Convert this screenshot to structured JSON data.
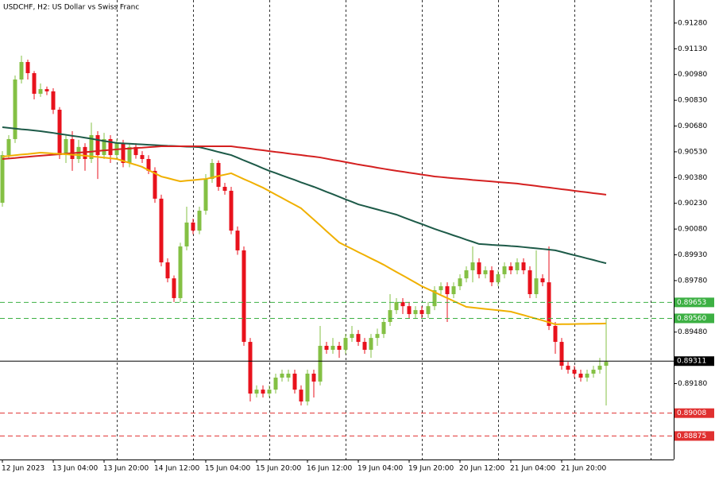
{
  "chart_data": {
    "type": "candlestick",
    "title": "USDCHF, H2:  US Dollar vs Swiss Franc",
    "categories": [
      "12 Jun 2023",
      null,
      null,
      null,
      null,
      null,
      null,
      null,
      "13 Jun 04:00",
      null,
      null,
      null,
      null,
      null,
      null,
      null,
      "13 Jun 20:00",
      null,
      null,
      null,
      null,
      null,
      null,
      null,
      "14 Jun 12:00",
      null,
      null,
      null,
      null,
      null,
      null,
      null,
      "15 Jun 04:00",
      null,
      null,
      null,
      null,
      null,
      null,
      null,
      "15 Jun 20:00",
      null,
      null,
      null,
      null,
      null,
      null,
      null,
      "16 Jun 12:00",
      null,
      null,
      null,
      null,
      null,
      null,
      null,
      "19 Jun 04:00",
      null,
      null,
      null,
      null,
      null,
      null,
      null,
      "19 Jun 20:00",
      null,
      null,
      null,
      null,
      null,
      null,
      null,
      "20 Jun 12:00",
      null,
      null,
      null,
      null,
      null,
      null,
      null,
      "21 Jun 04:00",
      null,
      null,
      null,
      null,
      null,
      null,
      null,
      "21 Jun 20:00",
      null,
      null,
      null,
      null,
      null,
      null,
      null
    ],
    "candles": [
      [
        0.90233,
        0.90534,
        0.9021,
        0.90511
      ],
      [
        0.90511,
        0.90627,
        0.90488,
        0.90604
      ],
      [
        0.90604,
        0.90974,
        0.90581,
        0.90951
      ],
      [
        0.90951,
        0.9109,
        0.90928,
        0.91053
      ],
      [
        0.91053,
        0.91067,
        0.90951,
        0.90988
      ],
      [
        0.90988,
        0.91,
        0.90835,
        0.90868
      ],
      [
        0.90868,
        0.90928,
        0.9085,
        0.90895
      ],
      [
        0.90895,
        0.9091,
        0.9086,
        0.90882
      ],
      [
        0.90882,
        0.909,
        0.9075,
        0.90775
      ],
      [
        0.90775,
        0.9079,
        0.90488,
        0.90511
      ],
      [
        0.90511,
        0.90627,
        0.90465,
        0.90604
      ],
      [
        0.90604,
        0.9065,
        0.90419,
        0.90488
      ],
      [
        0.90488,
        0.906,
        0.90465,
        0.90558
      ],
      [
        0.90558,
        0.9058,
        0.9042,
        0.90488
      ],
      [
        0.90488,
        0.907,
        0.90465,
        0.90627
      ],
      [
        0.90627,
        0.9065,
        0.90372,
        0.90511
      ],
      [
        0.90511,
        0.9064,
        0.90488,
        0.90604
      ],
      [
        0.90604,
        0.90627,
        0.90465,
        0.90511
      ],
      [
        0.90511,
        0.90604,
        0.90488,
        0.90581
      ],
      [
        0.90581,
        0.906,
        0.9044,
        0.90465
      ],
      [
        0.90465,
        0.9058,
        0.9044,
        0.90558
      ],
      [
        0.90558,
        0.9058,
        0.9049,
        0.90511
      ],
      [
        0.90511,
        0.90534,
        0.90465,
        0.90488
      ],
      [
        0.90488,
        0.9051,
        0.904,
        0.90419
      ],
      [
        0.90419,
        0.9044,
        0.90233,
        0.90257
      ],
      [
        0.90257,
        0.9028,
        0.89863,
        0.89886
      ],
      [
        0.89886,
        0.8991,
        0.8977,
        0.89793
      ],
      [
        0.89793,
        0.8981,
        0.89655,
        0.89678
      ],
      [
        0.89678,
        0.9,
        0.89655,
        0.89979
      ],
      [
        0.89979,
        0.9021,
        0.89956,
        0.90118
      ],
      [
        0.90118,
        0.9014,
        0.9005,
        0.90071
      ],
      [
        0.90071,
        0.9021,
        0.9005,
        0.90187
      ],
      [
        0.90187,
        0.904,
        0.90164,
        0.90372
      ],
      [
        0.90372,
        0.90488,
        0.90349,
        0.90465
      ],
      [
        0.90465,
        0.9048,
        0.90303,
        0.90326
      ],
      [
        0.90326,
        0.90349,
        0.9028,
        0.90303
      ],
      [
        0.90303,
        0.90326,
        0.9005,
        0.90071
      ],
      [
        0.90071,
        0.90095,
        0.8993,
        0.89956
      ],
      [
        0.89956,
        0.89979,
        0.894,
        0.89423
      ],
      [
        0.89423,
        0.89446,
        0.89076,
        0.89122
      ],
      [
        0.89122,
        0.8917,
        0.89099,
        0.89145
      ],
      [
        0.89145,
        0.8917,
        0.89099,
        0.89122
      ],
      [
        0.89122,
        0.8917,
        0.89099,
        0.89145
      ],
      [
        0.89145,
        0.89238,
        0.89122,
        0.89215
      ],
      [
        0.89215,
        0.89261,
        0.89192,
        0.89238
      ],
      [
        0.89215,
        0.89261,
        0.89192,
        0.89238
      ],
      [
        0.89238,
        0.89261,
        0.89122,
        0.89145
      ],
      [
        0.89145,
        0.8917,
        0.89053,
        0.89076
      ],
      [
        0.89076,
        0.89261,
        0.89053,
        0.89238
      ],
      [
        0.89238,
        0.89261,
        0.89099,
        0.89192
      ],
      [
        0.89192,
        0.89516,
        0.8917,
        0.894
      ],
      [
        0.894,
        0.89423,
        0.89354,
        0.89377
      ],
      [
        0.89377,
        0.89446,
        0.89354,
        0.894
      ],
      [
        0.894,
        0.89423,
        0.8933,
        0.89377
      ],
      [
        0.89377,
        0.89469,
        0.89354,
        0.89446
      ],
      [
        0.89446,
        0.89516,
        0.89423,
        0.89469
      ],
      [
        0.89469,
        0.89492,
        0.894,
        0.89423
      ],
      [
        0.89423,
        0.89446,
        0.89354,
        0.89377
      ],
      [
        0.89377,
        0.89469,
        0.8933,
        0.89446
      ],
      [
        0.89446,
        0.895,
        0.894,
        0.89469
      ],
      [
        0.89469,
        0.8956,
        0.89446,
        0.89539
      ],
      [
        0.89539,
        0.89701,
        0.89516,
        0.89608
      ],
      [
        0.89608,
        0.89678,
        0.89585,
        0.89655
      ],
      [
        0.89655,
        0.89678,
        0.89585,
        0.89631
      ],
      [
        0.89631,
        0.89655,
        0.89562,
        0.89585
      ],
      [
        0.89585,
        0.89631,
        0.89562,
        0.89608
      ],
      [
        0.89608,
        0.89631,
        0.89562,
        0.89585
      ],
      [
        0.89585,
        0.89655,
        0.89562,
        0.89631
      ],
      [
        0.89631,
        0.89747,
        0.89608,
        0.89724
      ],
      [
        0.89724,
        0.8977,
        0.89701,
        0.89747
      ],
      [
        0.89747,
        0.8977,
        0.89539,
        0.89701
      ],
      [
        0.89701,
        0.8977,
        0.89678,
        0.89747
      ],
      [
        0.89747,
        0.89817,
        0.89724,
        0.89793
      ],
      [
        0.89793,
        0.89863,
        0.8977,
        0.8984
      ],
      [
        0.8984,
        0.89979,
        0.8977,
        0.89886
      ],
      [
        0.89886,
        0.8991,
        0.89793,
        0.89817
      ],
      [
        0.89817,
        0.89863,
        0.89793,
        0.8984
      ],
      [
        0.8984,
        0.89863,
        0.89747,
        0.8977
      ],
      [
        0.8977,
        0.8984,
        0.89747,
        0.89817
      ],
      [
        0.89817,
        0.89886,
        0.89793,
        0.89863
      ],
      [
        0.89863,
        0.89886,
        0.89817,
        0.8984
      ],
      [
        0.8984,
        0.8991,
        0.89817,
        0.89886
      ],
      [
        0.89886,
        0.8991,
        0.89817,
        0.8984
      ],
      [
        0.8984,
        0.89863,
        0.89678,
        0.89701
      ],
      [
        0.89701,
        0.89956,
        0.89678,
        0.89793
      ],
      [
        0.89793,
        0.89817,
        0.89747,
        0.8977
      ],
      [
        0.8977,
        0.89979,
        0.89492,
        0.89516
      ],
      [
        0.89516,
        0.89539,
        0.89354,
        0.89423
      ],
      [
        0.89423,
        0.89446,
        0.89261,
        0.89284
      ],
      [
        0.89284,
        0.89307,
        0.89238,
        0.89261
      ],
      [
        0.89261,
        0.89284,
        0.89215,
        0.89238
      ],
      [
        0.89238,
        0.89261,
        0.89192,
        0.89215
      ],
      [
        0.89215,
        0.89261,
        0.89192,
        0.89238
      ],
      [
        0.89238,
        0.89284,
        0.89215,
        0.89261
      ],
      [
        0.89261,
        0.8933,
        0.89238,
        0.89284
      ],
      [
        0.89284,
        0.8956,
        0.89053,
        0.89307
      ]
    ],
    "up_color": "#84c044",
    "down_color": "#e8121c",
    "series": [
      {
        "color": "#1d5a48",
        "values": [
          0.90673,
          0.90669,
          0.90665,
          0.90661,
          0.90658,
          0.90654,
          0.9065,
          0.90645,
          0.9064,
          0.90634,
          0.90629,
          0.90623,
          0.90618,
          0.90612,
          0.90606,
          0.90599,
          0.90593,
          0.90587,
          0.90581,
          0.90579,
          0.90577,
          0.90575,
          0.90573,
          0.90571,
          0.90569,
          0.90567,
          0.90565,
          0.90564,
          0.90562,
          0.9056,
          0.90559,
          0.90557,
          0.90548,
          0.90539,
          0.90529,
          0.9052,
          0.90511,
          0.90496,
          0.9048,
          0.90465,
          0.9045,
          0.90434,
          0.90419,
          0.90406,
          0.90392,
          0.90379,
          0.90366,
          0.90352,
          0.90339,
          0.90326,
          0.90312,
          0.90297,
          0.90283,
          0.90268,
          0.90253,
          0.90239,
          0.90224,
          0.90214,
          0.90204,
          0.90194,
          0.90184,
          0.90174,
          0.90164,
          0.9015,
          0.90136,
          0.90122,
          0.90109,
          0.90095,
          0.90081,
          0.90068,
          0.90056,
          0.90043,
          0.90031,
          0.90018,
          0.90006,
          0.89993,
          0.89991,
          0.89988,
          0.89986,
          0.89984,
          0.89981,
          0.89979,
          0.89975,
          0.89971,
          0.89968,
          0.89964,
          0.8996,
          0.89956,
          0.89947,
          0.89937,
          0.89928,
          0.89919,
          0.89909,
          0.899,
          0.8989,
          0.89881
        ]
      },
      {
        "color": "#d42020",
        "values": [
          0.90488,
          0.90491,
          0.90494,
          0.90498,
          0.90501,
          0.90504,
          0.90507,
          0.9051,
          0.90513,
          0.90516,
          0.90519,
          0.90522,
          0.90525,
          0.90528,
          0.90531,
          0.90535,
          0.90538,
          0.90541,
          0.90544,
          0.90547,
          0.90549,
          0.90552,
          0.90554,
          0.90557,
          0.90559,
          0.90562,
          0.90562,
          0.90562,
          0.90562,
          0.90562,
          0.90562,
          0.90562,
          0.90562,
          0.90562,
          0.90562,
          0.90562,
          0.90562,
          0.90557,
          0.90553,
          0.90548,
          0.90543,
          0.90539,
          0.90534,
          0.90529,
          0.90525,
          0.9052,
          0.90515,
          0.90511,
          0.90506,
          0.90502,
          0.90497,
          0.9049,
          0.90483,
          0.90477,
          0.9047,
          0.90463,
          0.90456,
          0.9045,
          0.90444,
          0.90437,
          0.90431,
          0.90425,
          0.90419,
          0.90414,
          0.90408,
          0.90403,
          0.90397,
          0.90392,
          0.90386,
          0.90383,
          0.90379,
          0.90376,
          0.90373,
          0.9037,
          0.90366,
          0.90363,
          0.9036,
          0.90357,
          0.90354,
          0.90351,
          0.90348,
          0.90345,
          0.9034,
          0.90336,
          0.90331,
          0.90326,
          0.90322,
          0.90317,
          0.90312,
          0.90308,
          0.90303,
          0.90298,
          0.90294,
          0.90289,
          0.90285,
          0.9028
        ]
      },
      {
        "color": "#f0b000",
        "values": [
          0.90502,
          0.90506,
          0.9051,
          0.90514,
          0.90517,
          0.90521,
          0.90525,
          0.90523,
          0.9052,
          0.90518,
          0.90516,
          0.90513,
          0.90511,
          0.90507,
          0.90503,
          0.905,
          0.90496,
          0.90492,
          0.90488,
          0.90477,
          0.90465,
          0.90454,
          0.90442,
          0.90423,
          0.90405,
          0.90386,
          0.90377,
          0.90367,
          0.90358,
          0.90362,
          0.90365,
          0.90369,
          0.90372,
          0.9038,
          0.90389,
          0.90397,
          0.90405,
          0.90388,
          0.90371,
          0.90355,
          0.90338,
          0.90321,
          0.90301,
          0.90281,
          0.90261,
          0.90241,
          0.90221,
          0.90201,
          0.90168,
          0.90135,
          0.90102,
          0.90068,
          0.90035,
          0.90002,
          0.89983,
          0.89965,
          0.89946,
          0.89928,
          0.89909,
          0.89891,
          0.89872,
          0.89851,
          0.8983,
          0.8981,
          0.89789,
          0.89768,
          0.89747,
          0.8973,
          0.89713,
          0.89695,
          0.89678,
          0.89661,
          0.89644,
          0.89627,
          0.89623,
          0.89619,
          0.89615,
          0.89611,
          0.89607,
          0.89603,
          0.89599,
          0.89589,
          0.89579,
          0.89568,
          0.89558,
          0.89548,
          0.89537,
          0.89525,
          0.89526,
          0.89526,
          0.89527,
          0.89528,
          0.89528,
          0.89529,
          0.89529,
          0.8953
        ]
      }
    ],
    "levels": [
      {
        "value": 0.89653,
        "label": "0.89653",
        "color": "#3cb043",
        "style": "dashed"
      },
      {
        "value": 0.8956,
        "label": "0.89560",
        "color": "#3cb043",
        "style": "dashed"
      },
      {
        "value": 0.89311,
        "label": "0.89311",
        "color": "#000000",
        "style": "solid"
      },
      {
        "value": 0.89008,
        "label": "0.89008",
        "color": "#e03030",
        "style": "dashed"
      },
      {
        "value": 0.88875,
        "label": "0.88875",
        "color": "#e03030",
        "style": "dashed"
      }
    ],
    "ylim": [
      0.88738,
      0.91414
    ],
    "yticks": [
      {
        "value": 0.9128,
        "label": "0.91280"
      },
      {
        "value": 0.9113,
        "label": "0.91130"
      },
      {
        "value": 0.9098,
        "label": "0.90980"
      },
      {
        "value": 0.9083,
        "label": "0.90830"
      },
      {
        "value": 0.9068,
        "label": "0.90680"
      },
      {
        "value": 0.9053,
        "label": "0.90530"
      },
      {
        "value": 0.9038,
        "label": "0.90380"
      },
      {
        "value": 0.9023,
        "label": "0.90230"
      },
      {
        "value": 0.9008,
        "label": "0.90080"
      },
      {
        "value": 0.8993,
        "label": "0.89930"
      },
      {
        "value": 0.8978,
        "label": "0.89780"
      },
      {
        "value": 0.8948,
        "label": "0.89480"
      },
      {
        "value": 0.8918,
        "label": "0.89180"
      }
    ]
  }
}
